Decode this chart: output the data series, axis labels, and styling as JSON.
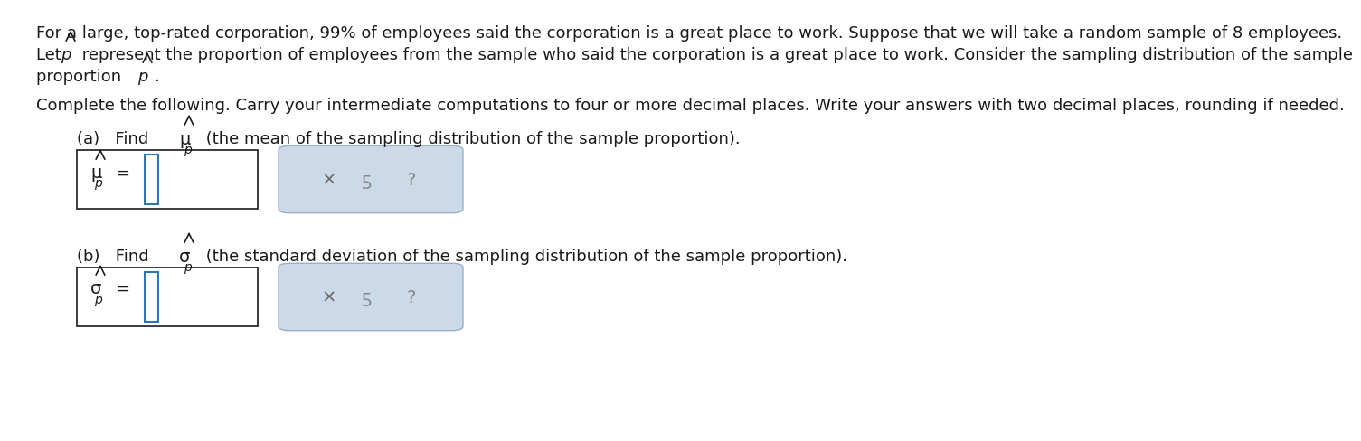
{
  "background_color": "#ffffff",
  "text_color": "#1a1a1a",
  "blue_color": "#2E75B6",
  "box_border_color": "#000000",
  "button_box_bg": "#ccd9e8",
  "button_box_border": "#9ab0c8",
  "paragraph1": "For a large, top-rated corporation, 99% of employees said the corporation is a great place to work. Suppose that we will take a random sample of 8 employees.",
  "paragraph2_pre": "Let ",
  "paragraph2_p": "p",
  "paragraph2_post": " represent the proportion of employees from the sample who said the corporation is a great place to work. Consider the sampling distribution of the sample",
  "paragraph2b_pre": "proportion ",
  "paragraph2b_p": "p",
  "paragraph2b_post": ".",
  "paragraph3": "Complete the following. Carry your intermediate computations to four or more decimal places. Write your answers with two decimal places, rounding if needed.",
  "part_a_find": "(a)   Find ",
  "part_a_greek": "μ",
  "part_a_desc": " (the mean of the sampling distribution of the sample proportion).",
  "part_b_find": "(b)   Find ",
  "part_b_greek": "σ",
  "part_b_desc": " (the standard deviation of the sampling distribution of the sample proportion).",
  "font_size_body": 13.0,
  "font_size_greek": 14.0,
  "font_size_sub": 10.0,
  "font_size_btn": 14.0
}
